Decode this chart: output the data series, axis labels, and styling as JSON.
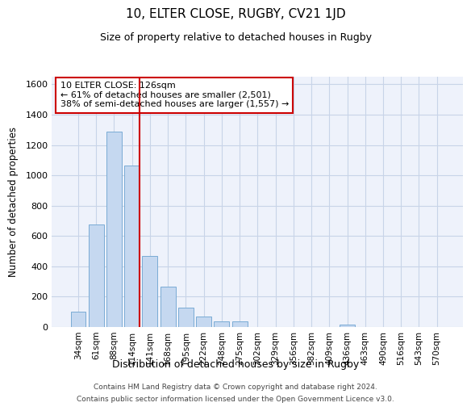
{
  "title1": "10, ELTER CLOSE, RUGBY, CV21 1JD",
  "title2": "Size of property relative to detached houses in Rugby",
  "xlabel": "Distribution of detached houses by size in Rugby",
  "ylabel": "Number of detached properties",
  "categories": [
    "34sqm",
    "61sqm",
    "88sqm",
    "114sqm",
    "141sqm",
    "168sqm",
    "195sqm",
    "222sqm",
    "248sqm",
    "275sqm",
    "302sqm",
    "329sqm",
    "356sqm",
    "382sqm",
    "409sqm",
    "436sqm",
    "463sqm",
    "490sqm",
    "516sqm",
    "543sqm",
    "570sqm"
  ],
  "values": [
    100,
    675,
    1290,
    1065,
    470,
    265,
    130,
    70,
    35,
    35,
    0,
    0,
    0,
    0,
    0,
    15,
    0,
    0,
    0,
    0,
    0
  ],
  "bar_color": "#c5d8f0",
  "bar_edge_color": "#7aabd4",
  "vline_x_index": 3,
  "vline_color": "#cc0000",
  "annotation_line1": "10 ELTER CLOSE: 126sqm",
  "annotation_line2": "← 61% of detached houses are smaller (2,501)",
  "annotation_line3": "38% of semi-detached houses are larger (1,557) →",
  "annotation_box_color": "#cc0000",
  "ylim": [
    0,
    1650
  ],
  "yticks": [
    0,
    200,
    400,
    600,
    800,
    1000,
    1200,
    1400,
    1600
  ],
  "bg_color": "#eef2fb",
  "grid_color": "#c8d4e8",
  "footer1": "Contains HM Land Registry data © Crown copyright and database right 2024.",
  "footer2": "Contains public sector information licensed under the Open Government Licence v3.0."
}
